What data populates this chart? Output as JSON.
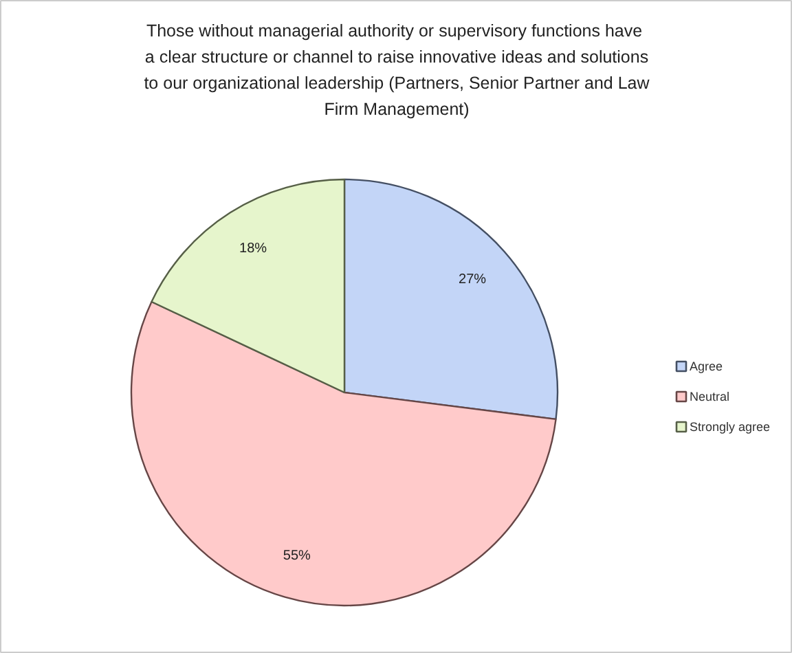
{
  "chart_data": {
    "type": "pie",
    "title": "Those without managerial authority or supervisory  functions have\na clear structure or channel to raise innovative ideas and solutions\nto our organizational leadership (Partners, Senior Partner and Law\nFirm Management)",
    "categories": [
      "Agree",
      "Neutral",
      "Strongly agree"
    ],
    "values": [
      27,
      55,
      18
    ],
    "colors": [
      "#c3d5f7",
      "#ffcaca",
      "#e6f5cc"
    ],
    "value_labels": [
      "27%",
      "55%",
      "18%"
    ],
    "legend": "right"
  }
}
